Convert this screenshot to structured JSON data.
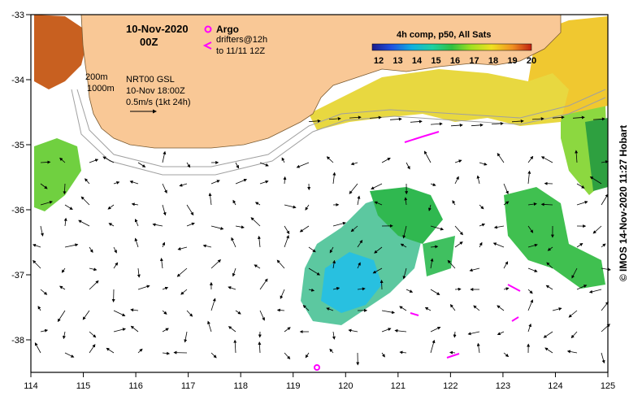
{
  "map": {
    "title_date": "10-Nov-2020",
    "title_hour": "00Z",
    "argo_label": "Argo",
    "drifters_label": "drifters@12h",
    "drifters_to": "to 11/11 12Z",
    "isobath_200": "200m",
    "isobath_1000": "1000m",
    "nrt_product": "NRT00 GSL",
    "nrt_time": "10-Nov 18:00Z",
    "scale_label": "0.5m/s (1kt 24h)",
    "colorbar_title": "4h comp, p50, All Sats",
    "colorbar_ticks": [
      "12",
      "13",
      "14",
      "15",
      "16",
      "17",
      "18",
      "19",
      "20"
    ],
    "credit": "© IMOS 14-Nov-2020 11:27 Hobart"
  },
  "axes": {
    "x_ticks": [
      "114",
      "115",
      "116",
      "117",
      "118",
      "119",
      "120",
      "121",
      "122",
      "123",
      "124",
      "125"
    ],
    "y_ticks": [
      "-33",
      "-34",
      "-35",
      "-36",
      "-37",
      "-38"
    ]
  },
  "colors": {
    "land": "#f9c896",
    "argo": "#ff00ff",
    "drifter": "#ff00ff",
    "isobath": "#a0a0a0"
  }
}
